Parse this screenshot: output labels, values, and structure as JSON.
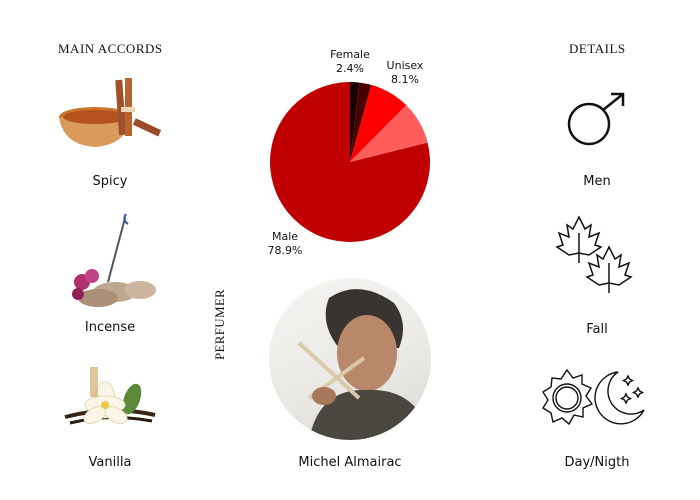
{
  "accords": {
    "heading": "MAIN ACCORDS",
    "items": [
      {
        "label": "Spicy",
        "icon": "cinnamon-icon"
      },
      {
        "label": "Incense",
        "icon": "incense-icon"
      },
      {
        "label": "Vanilla",
        "icon": "vanilla-flower-icon"
      }
    ]
  },
  "details": {
    "heading": "DETAILS",
    "items": [
      {
        "label": "Men",
        "icon": "male-symbol-icon"
      },
      {
        "label": "Fall",
        "icon": "maple-leaves-icon"
      },
      {
        "label": "Day/Nigth",
        "icon": "sun-moon-icon"
      }
    ]
  },
  "perfumer": {
    "heading": "PERFUMER",
    "name": "Michel Almairac"
  },
  "chart_data": {
    "type": "pie",
    "start": "top",
    "direction": "clockwise",
    "slices": [
      {
        "value": 1.9,
        "color": "#1a0000"
      },
      {
        "name": "Female",
        "label": "Female",
        "pct": "2.4%",
        "value": 2.4,
        "color": "#4a0000"
      },
      {
        "name": "Unisex",
        "label": "Unisex",
        "pct": "8.1%",
        "value": 8.1,
        "color": "#ff0000"
      },
      {
        "value": 8.7,
        "color": "#ff5c5c"
      },
      {
        "name": "Male",
        "label": "Male",
        "pct": "78.9%",
        "value": 78.9,
        "color": "#c00000"
      }
    ]
  }
}
